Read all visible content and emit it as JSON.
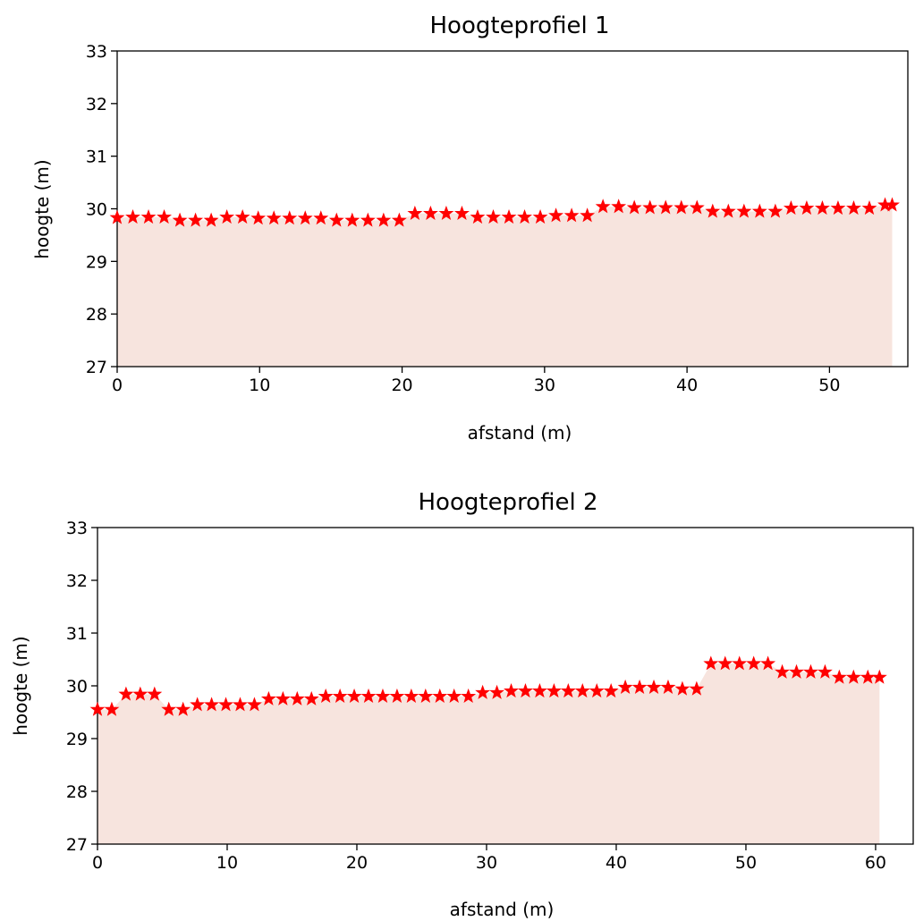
{
  "chart_data": [
    {
      "type": "area",
      "title": "Hoogteprofiel 1",
      "xlabel": "afstand (m)",
      "ylabel": "hoogte (m)",
      "xlim": [
        0,
        55.5
      ],
      "ylim": [
        27,
        33
      ],
      "xticks": [
        0,
        10,
        20,
        30,
        40,
        50
      ],
      "yticks": [
        27,
        28,
        29,
        30,
        31,
        32,
        33
      ],
      "marker": "star",
      "marker_color": "#ff0000",
      "fill_color": "#f7e4de",
      "grid": false,
      "x": [
        0,
        1.1,
        2.2,
        3.3,
        4.4,
        5.5,
        6.6,
        7.7,
        8.8,
        9.9,
        11.0,
        12.1,
        13.2,
        14.3,
        15.4,
        16.5,
        17.6,
        18.7,
        19.8,
        20.9,
        22.0,
        23.1,
        24.2,
        25.3,
        26.4,
        27.5,
        28.6,
        29.7,
        30.8,
        31.9,
        33.0,
        34.1,
        35.2,
        36.3,
        37.4,
        38.5,
        39.6,
        40.7,
        41.8,
        42.9,
        44.0,
        45.1,
        46.2,
        47.3,
        48.4,
        49.5,
        50.6,
        51.7,
        52.8,
        53.9,
        54.4
      ],
      "y": [
        29.83,
        29.84,
        29.84,
        29.84,
        29.78,
        29.78,
        29.78,
        29.84,
        29.84,
        29.82,
        29.82,
        29.82,
        29.82,
        29.82,
        29.78,
        29.78,
        29.78,
        29.78,
        29.78,
        29.91,
        29.91,
        29.91,
        29.91,
        29.84,
        29.84,
        29.84,
        29.84,
        29.84,
        29.87,
        29.87,
        29.87,
        30.04,
        30.04,
        30.02,
        30.02,
        30.02,
        30.02,
        30.02,
        29.95,
        29.95,
        29.95,
        29.95,
        29.95,
        30.01,
        30.01,
        30.01,
        30.01,
        30.01,
        30.01,
        30.07,
        30.07
      ]
    },
    {
      "type": "area",
      "title": "Hoogteprofiel 2",
      "xlabel": "afstand (m)",
      "ylabel": "hoogte (m)",
      "xlim": [
        0,
        62.9
      ],
      "ylim": [
        27,
        33
      ],
      "xticks": [
        0,
        10,
        20,
        30,
        40,
        50,
        60
      ],
      "yticks": [
        27,
        28,
        29,
        30,
        31,
        32,
        33
      ],
      "marker": "star",
      "marker_color": "#ff0000",
      "fill_color": "#f7e4de",
      "grid": false,
      "x": [
        0,
        1.1,
        2.2,
        3.3,
        4.4,
        5.5,
        6.6,
        7.7,
        8.8,
        9.9,
        11.0,
        12.1,
        13.2,
        14.3,
        15.4,
        16.5,
        17.6,
        18.7,
        19.8,
        20.9,
        22.0,
        23.1,
        24.2,
        25.3,
        26.4,
        27.5,
        28.6,
        29.7,
        30.8,
        31.9,
        33.0,
        34.1,
        35.2,
        36.3,
        37.4,
        38.5,
        39.6,
        40.7,
        41.8,
        42.9,
        44.0,
        45.1,
        46.2,
        47.3,
        48.4,
        49.5,
        50.6,
        51.7,
        52.8,
        53.9,
        55.0,
        56.1,
        57.2,
        58.3,
        59.4,
        60.3
      ],
      "y": [
        29.55,
        29.55,
        29.84,
        29.84,
        29.84,
        29.55,
        29.55,
        29.64,
        29.64,
        29.64,
        29.64,
        29.64,
        29.75,
        29.75,
        29.75,
        29.75,
        29.8,
        29.8,
        29.8,
        29.8,
        29.8,
        29.8,
        29.8,
        29.8,
        29.8,
        29.8,
        29.8,
        29.87,
        29.87,
        29.9,
        29.9,
        29.9,
        29.9,
        29.9,
        29.9,
        29.9,
        29.9,
        29.97,
        29.97,
        29.97,
        29.97,
        29.94,
        29.94,
        30.42,
        30.42,
        30.42,
        30.42,
        30.42,
        30.26,
        30.26,
        30.26,
        30.26,
        30.16,
        30.16,
        30.16,
        30.16
      ]
    }
  ]
}
